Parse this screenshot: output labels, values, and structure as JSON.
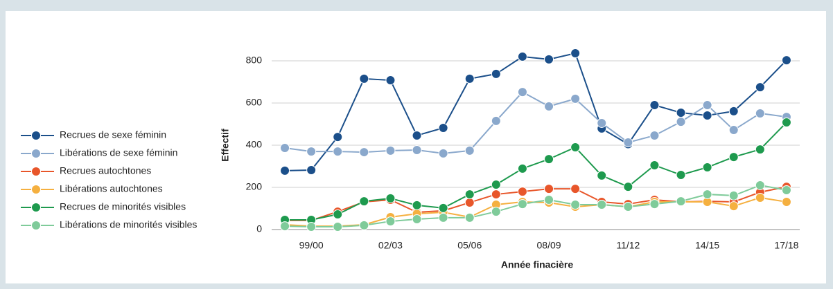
{
  "chart_data": {
    "type": "line",
    "x_label": "Année finacière",
    "y_label": "Effectif",
    "categories": [
      null,
      "99/00",
      null,
      null,
      "02/03",
      null,
      null,
      "05/06",
      null,
      null,
      "08/09",
      null,
      null,
      "11/12",
      null,
      null,
      "14/15",
      null,
      null,
      "17/18"
    ],
    "ylim": [
      0,
      900
    ],
    "yticks": [
      0,
      200,
      400,
      600,
      800
    ],
    "grid": true,
    "legend": "left",
    "series": [
      {
        "name": "Recrues de sexe féminin",
        "color": "#1b4f8a",
        "values": [
          279,
          282,
          439,
          715,
          708,
          446,
          482,
          715,
          738,
          820,
          807,
          836,
          479,
          405,
          590,
          554,
          541,
          561,
          675,
          803
        ]
      },
      {
        "name": "Libérations de sexe féminin",
        "color": "#8aa8cc",
        "values": [
          387,
          370,
          370,
          367,
          374,
          377,
          361,
          374,
          515,
          652,
          584,
          620,
          505,
          413,
          446,
          511,
          590,
          472,
          551,
          534
        ]
      },
      {
        "name": "Recrues autochtones",
        "color": "#e8562a",
        "values": [
          43,
          43,
          85,
          131,
          141,
          82,
          89,
          128,
          167,
          180,
          193,
          193,
          131,
          121,
          141,
          131,
          134,
          131,
          177,
          203
        ]
      },
      {
        "name": "Libérations autochtones",
        "color": "#f5b040",
        "values": [
          23,
          16,
          16,
          23,
          59,
          75,
          82,
          59,
          118,
          131,
          128,
          108,
          118,
          108,
          131,
          131,
          131,
          111,
          151,
          131
        ]
      },
      {
        "name": "Recrues de minorités visibles",
        "color": "#1e9a4e",
        "values": [
          46,
          46,
          72,
          134,
          148,
          115,
          102,
          167,
          213,
          289,
          334,
          390,
          256,
          203,
          305,
          259,
          295,
          344,
          380,
          508
        ]
      },
      {
        "name": "Libérations de minorités visibles",
        "color": "#7fcb9a",
        "values": [
          16,
          13,
          13,
          20,
          39,
          49,
          56,
          56,
          85,
          121,
          141,
          118,
          118,
          108,
          121,
          134,
          167,
          161,
          210,
          187
        ]
      }
    ]
  }
}
